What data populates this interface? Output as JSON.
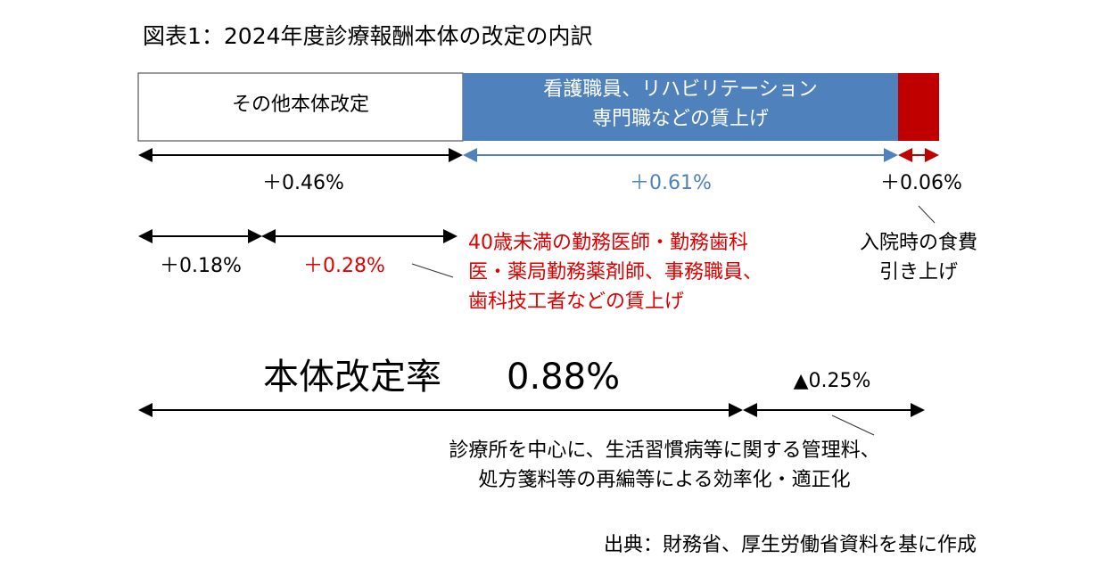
{
  "title": "図表1：2024年度診療報酬本体の改定の内訳",
  "bar": {
    "segments": [
      {
        "lines": [
          "その他本体改定"
        ]
      },
      {
        "lines": [
          "看護職員、リハビリテーション",
          "専門職などの賃上げ"
        ]
      },
      {
        "lines": []
      }
    ]
  },
  "breakdown": {
    "other": "＋0.46%",
    "nursing": "＋0.61%",
    "meal": "＋0.06%",
    "other_general": "＋0.18%",
    "other_wage": "＋0.28%",
    "wage_note": [
      "40歳未満の勤務医師・勤務歯科",
      "医・薬局勤務薬剤師、事務職員、",
      "歯科技工者などの賃上げ"
    ],
    "meal_note": [
      "入院時の食費",
      "引き上げ"
    ]
  },
  "total": {
    "label": "本体改定率",
    "value": "0.88%",
    "reduction": "▲0.25%",
    "reduction_note": [
      "診療所を中心に、生活習慣病等に関する管理料、",
      "処方箋料等の再編等による効率化・適正化"
    ]
  },
  "source": "出典：財務省、厚生労働省資料を基に作成"
}
